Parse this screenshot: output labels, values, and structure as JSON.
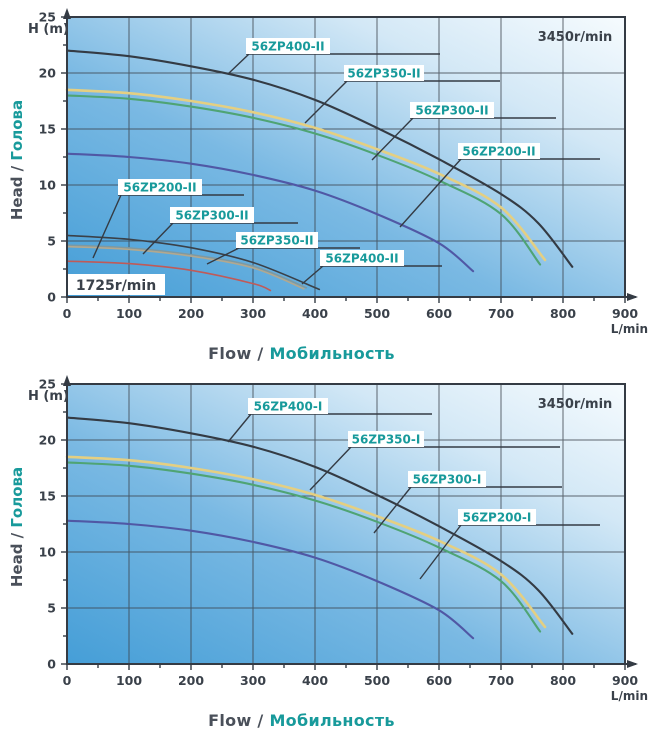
{
  "colors": {
    "teal_accent": "#189a9b",
    "axis_dark": "#343b44",
    "text_gray": "#4a505a",
    "plot_gradient": [
      "#459ed7",
      "#7ab9e3",
      "#d3e8f6",
      "#f6fbfe"
    ]
  },
  "charts": [
    {
      "id": "top-chart",
      "speed_main": "3450r/min",
      "speed_secondary": "1725r/min",
      "x_axis": {
        "title_prefix": "Flow /",
        "title_main": "Мобильность",
        "unit": "L/min",
        "ticks": [
          0,
          100,
          200,
          300,
          400,
          500,
          600,
          700,
          800,
          900
        ],
        "max": 900
      },
      "y_axis": {
        "label": "H (m)",
        "title_prefix": "Head /",
        "title_main": "Голова",
        "ticks": [
          25,
          20,
          15,
          10,
          5,
          0
        ],
        "max": 25
      },
      "chart_data": {
        "type": "line",
        "x_unit": "L/min",
        "y_unit": "m",
        "series": [
          {
            "name": "56ZP400-II",
            "rpm": "3450r/min",
            "color": "#343b44",
            "width": 2.1,
            "points": [
              [
                0,
                22
              ],
              [
                100,
                21.5
              ],
              [
                200,
                20.6
              ],
              [
                300,
                19.4
              ],
              [
                400,
                17.6
              ],
              [
                500,
                15.1
              ],
              [
                600,
                12.3
              ],
              [
                700,
                9.2
              ],
              [
                760,
                6.6
              ],
              [
                815,
                2.7
              ]
            ]
          },
          {
            "name": "56ZP350-II",
            "rpm": "3450r/min",
            "color": "#e4cf82",
            "width": 2.6,
            "points": [
              [
                0,
                18.5
              ],
              [
                100,
                18.2
              ],
              [
                200,
                17.5
              ],
              [
                300,
                16.5
              ],
              [
                400,
                15.1
              ],
              [
                500,
                13.2
              ],
              [
                600,
                11.0
              ],
              [
                700,
                8.0
              ],
              [
                771,
                3.3
              ]
            ]
          },
          {
            "name": "56ZP300-II",
            "rpm": "3450r/min",
            "color": "#4fa474",
            "width": 2.1,
            "points": [
              [
                0,
                18.0
              ],
              [
                100,
                17.7
              ],
              [
                200,
                17.0
              ],
              [
                300,
                16.0
              ],
              [
                400,
                14.6
              ],
              [
                500,
                12.7
              ],
              [
                600,
                10.4
              ],
              [
                700,
                7.4
              ],
              [
                763,
                2.9
              ]
            ]
          },
          {
            "name": "56ZP200-II",
            "rpm": "3450r/min",
            "color": "#5058a5",
            "width": 2.1,
            "points": [
              [
                0,
                12.8
              ],
              [
                100,
                12.5
              ],
              [
                200,
                11.9
              ],
              [
                300,
                10.9
              ],
              [
                400,
                9.5
              ],
              [
                500,
                7.4
              ],
              [
                600,
                4.8
              ],
              [
                655,
                2.3
              ]
            ]
          },
          {
            "name": "56ZP400-II",
            "rpm": "1725r/min",
            "color": "#3a4149",
            "width": 1.6,
            "points": [
              [
                0,
                5.5
              ],
              [
                100,
                5.15
              ],
              [
                200,
                4.4
              ],
              [
                300,
                3.08
              ],
              [
                407,
                0.68
              ]
            ]
          },
          {
            "name": "56ZP350-II",
            "rpm": "1725r/min",
            "color": "#7e99a1",
            "width": 1.6,
            "points": [
              [
                0,
                4.63
              ],
              [
                100,
                4.38
              ],
              [
                200,
                3.78
              ],
              [
                300,
                2.75
              ],
              [
                386,
                0.83
              ]
            ]
          },
          {
            "name": "56ZP300-II",
            "rpm": "1725r/min",
            "color": "#b3a88e",
            "width": 1.6,
            "points": [
              [
                0,
                4.5
              ],
              [
                100,
                4.25
              ],
              [
                200,
                3.65
              ],
              [
                300,
                2.6
              ],
              [
                382,
                0.73
              ]
            ]
          },
          {
            "name": "56ZP200-II",
            "rpm": "1725r/min",
            "color": "#c05a58",
            "width": 1.6,
            "points": [
              [
                0,
                3.2
              ],
              [
                100,
                2.98
              ],
              [
                200,
                2.38
              ],
              [
                300,
                1.2
              ],
              [
                328,
                0.58
              ]
            ]
          }
        ]
      }
    },
    {
      "id": "bottom-chart",
      "speed_main": "3450r/min",
      "speed_secondary": null,
      "x_axis": {
        "title_prefix": "Flow /",
        "title_main": "Мобильность",
        "unit": "L/min",
        "ticks": [
          0,
          100,
          200,
          300,
          400,
          500,
          600,
          700,
          800,
          900
        ],
        "max": 900
      },
      "y_axis": {
        "label": "H (m)",
        "title_prefix": "Head /",
        "title_main": "Голова",
        "ticks": [
          25,
          20,
          15,
          10,
          5,
          0
        ],
        "max": 25
      },
      "chart_data": {
        "type": "line",
        "x_unit": "L/min",
        "y_unit": "m",
        "series": [
          {
            "name": "56ZP400-I",
            "rpm": "3450r/min",
            "color": "#343b44",
            "width": 2.1,
            "points": [
              [
                0,
                22
              ],
              [
                100,
                21.5
              ],
              [
                200,
                20.6
              ],
              [
                300,
                19.4
              ],
              [
                400,
                17.6
              ],
              [
                500,
                15.1
              ],
              [
                600,
                12.3
              ],
              [
                700,
                9.2
              ],
              [
                760,
                6.6
              ],
              [
                815,
                2.7
              ]
            ]
          },
          {
            "name": "56ZP350-I",
            "rpm": "3450r/min",
            "color": "#e4cf82",
            "width": 2.6,
            "points": [
              [
                0,
                18.5
              ],
              [
                100,
                18.2
              ],
              [
                200,
                17.5
              ],
              [
                300,
                16.5
              ],
              [
                400,
                15.1
              ],
              [
                500,
                13.2
              ],
              [
                600,
                11.0
              ],
              [
                700,
                8.0
              ],
              [
                771,
                3.3
              ]
            ]
          },
          {
            "name": "56ZP300-I",
            "rpm": "3450r/min",
            "color": "#4fa474",
            "width": 2.1,
            "points": [
              [
                0,
                18.0
              ],
              [
                100,
                17.7
              ],
              [
                200,
                17.0
              ],
              [
                300,
                16.0
              ],
              [
                400,
                14.6
              ],
              [
                500,
                12.7
              ],
              [
                600,
                10.4
              ],
              [
                700,
                7.4
              ],
              [
                763,
                2.9
              ]
            ]
          },
          {
            "name": "56ZP200-I",
            "rpm": "3450r/min",
            "color": "#5058a5",
            "width": 2.1,
            "points": [
              [
                0,
                12.8
              ],
              [
                100,
                12.5
              ],
              [
                200,
                11.9
              ],
              [
                300,
                10.9
              ],
              [
                400,
                9.5
              ],
              [
                500,
                7.4
              ],
              [
                600,
                4.8
              ],
              [
                655,
                2.3
              ]
            ]
          }
        ]
      }
    }
  ]
}
